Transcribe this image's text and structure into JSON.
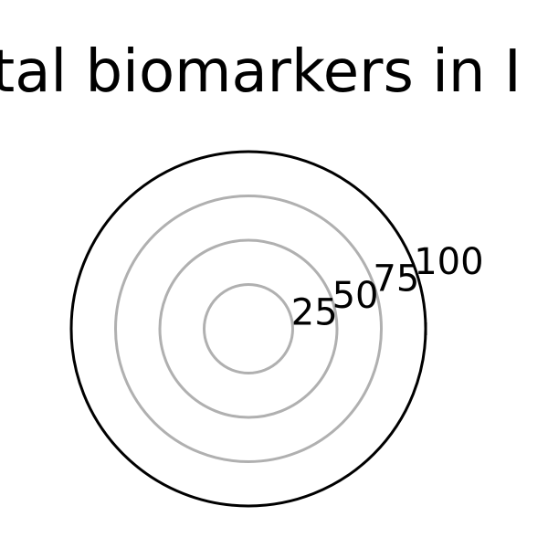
{
  "chart_data": {
    "type": "radar",
    "title": "ital biomarkers in I",
    "r_ticks": [
      25,
      50,
      75,
      100
    ],
    "r_tick_labels": [
      "25",
      "50",
      "75",
      "100"
    ],
    "r_range": [
      0,
      100
    ],
    "grid": true,
    "colors": {
      "grid": "#b0b0b0",
      "outer_ring": "#000000",
      "text": "#000000"
    },
    "series": []
  }
}
